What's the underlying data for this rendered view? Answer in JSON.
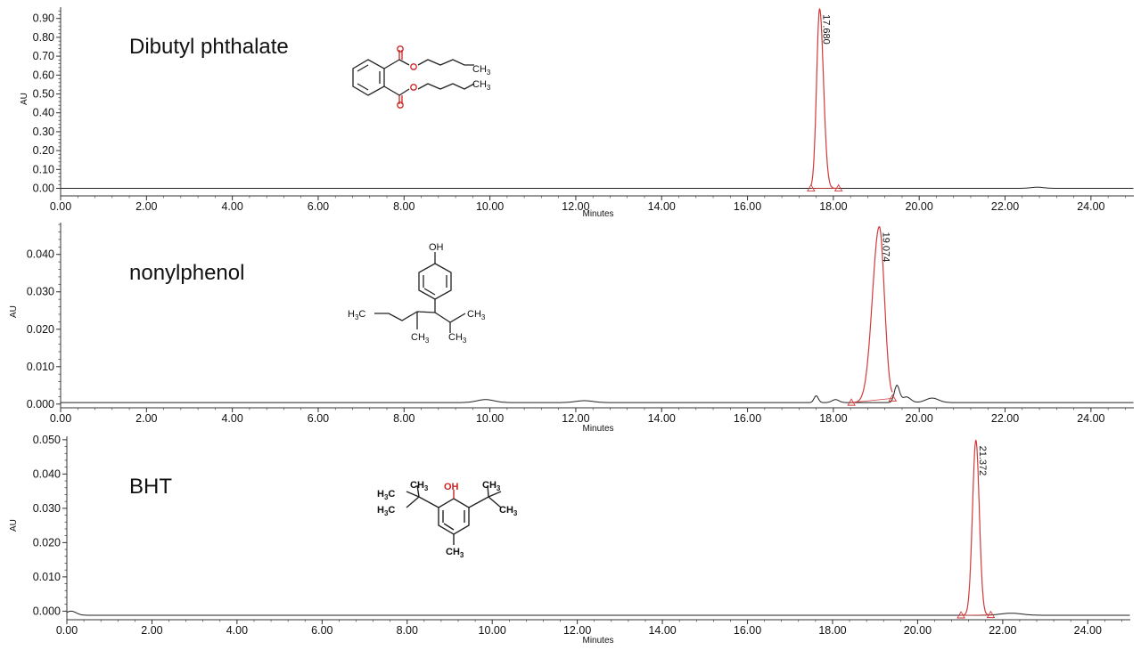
{
  "colors": {
    "baseline": "#222222",
    "peak": "#d23a3a",
    "axis": "#333333",
    "heteroatom": "#cc2222"
  },
  "chart_data": [
    {
      "type": "line",
      "title": "Dibutyl phthalate",
      "xlabel": "Minutes",
      "ylabel": "AU",
      "xlim": [
        0,
        25
      ],
      "ylim": [
        -0.04,
        0.96
      ],
      "xticks": [
        "0.00",
        "2.00",
        "4.00",
        "6.00",
        "8.00",
        "10.00",
        "12.00",
        "14.00",
        "16.00",
        "18.00",
        "20.00",
        "22.00",
        "24.00"
      ],
      "yticks": [
        "0.00",
        "0.10",
        "0.20",
        "0.30",
        "0.40",
        "0.50",
        "0.60",
        "0.70",
        "0.80",
        "0.90"
      ],
      "peaks": [
        {
          "label": "17.680",
          "rt": 17.68,
          "height": 0.95,
          "sigma_left": 0.07,
          "sigma_right": 0.09,
          "start": 17.48,
          "end": 18.12
        }
      ],
      "minor_peaks": [
        {
          "rt": 22.75,
          "height": 0.006,
          "sigma": 0.15
        }
      ],
      "baseline_level": 0.0,
      "structure_labels": {
        "ch3_top": "CH",
        "ch3_bottom": "CH",
        "sub": "3"
      }
    },
    {
      "type": "line",
      "title": "nonylphenol",
      "xlabel": "Minutes",
      "ylabel": "AU",
      "xlim": [
        0,
        25
      ],
      "ylim": [
        -0.001,
        0.0485
      ],
      "xticks": [
        "0.00",
        "2.00",
        "4.00",
        "6.00",
        "8.00",
        "10.00",
        "12.00",
        "14.00",
        "16.00",
        "18.00",
        "20.00",
        "22.00",
        "24.00"
      ],
      "yticks": [
        "0.000",
        "0.010",
        "0.020",
        "0.030",
        "0.040"
      ],
      "peaks": [
        {
          "label": "19.074",
          "rt": 19.07,
          "height": 0.047,
          "sigma_left": 0.16,
          "sigma_right": 0.12,
          "start": 18.42,
          "end": 19.38
        }
      ],
      "minor_peaks": [
        {
          "rt": 17.6,
          "height": 0.0018,
          "sigma": 0.05
        },
        {
          "rt": 18.05,
          "height": 0.0008,
          "sigma": 0.08
        },
        {
          "rt": 19.48,
          "height": 0.0045,
          "sigma": 0.06
        },
        {
          "rt": 19.7,
          "height": 0.0015,
          "sigma": 0.1
        },
        {
          "rt": 20.3,
          "height": 0.0012,
          "sigma": 0.15
        },
        {
          "rt": 9.9,
          "height": 0.0008,
          "sigma": 0.2
        },
        {
          "rt": 12.2,
          "height": 0.0005,
          "sigma": 0.2
        }
      ],
      "baseline_level": 0.0004,
      "structure_labels": {
        "oh": "OH",
        "h3c": "H",
        "c_after": "C",
        "ch3_a": "CH",
        "ch3_b": "CH",
        "ch3_c": "CH",
        "sub": "3"
      }
    },
    {
      "type": "line",
      "title": "BHT",
      "xlabel": "Minutes",
      "ylabel": "AU",
      "xlim": [
        0,
        25
      ],
      "ylim": [
        -0.0025,
        0.051
      ],
      "xticks": [
        "0.00",
        "2.00",
        "4.00",
        "6.00",
        "8.00",
        "10.00",
        "12.00",
        "14.00",
        "16.00",
        "18.00",
        "20.00",
        "22.00",
        "24.00"
      ],
      "yticks": [
        "0.000",
        "0.010",
        "0.020",
        "0.030",
        "0.040",
        "0.050"
      ],
      "peaks": [
        {
          "label": "21.372",
          "rt": 21.37,
          "height": 0.051,
          "sigma_left": 0.08,
          "sigma_right": 0.08,
          "start": 21.02,
          "end": 21.72
        }
      ],
      "minor_peaks": [
        {
          "rt": 0.1,
          "height": 0.0012,
          "sigma": 0.12
        },
        {
          "rt": 22.2,
          "height": 0.0006,
          "sigma": 0.25
        }
      ],
      "baseline_level": -0.0012,
      "structure_labels": {
        "oh": "OH",
        "h3c_1": "H",
        "h3c_2": "H",
        "c_after": "C",
        "ch3_a": "CH",
        "ch3_b": "CH",
        "ch3_c": "CH",
        "ch3_bottom": "CH",
        "sub": "3"
      }
    }
  ]
}
